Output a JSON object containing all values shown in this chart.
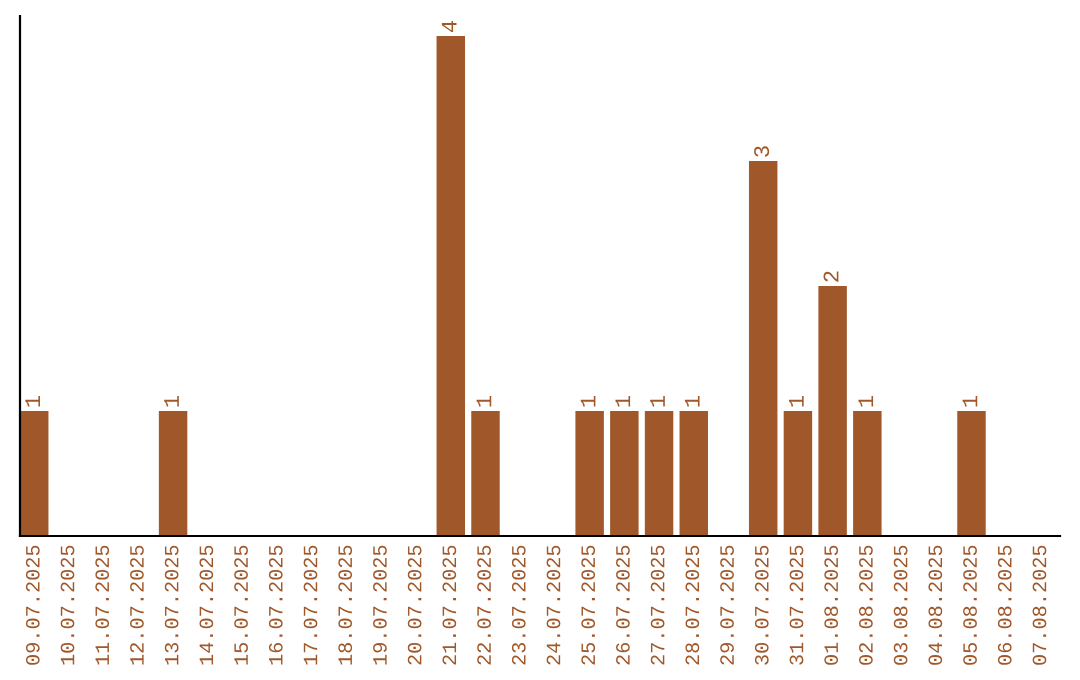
{
  "chart_data": {
    "type": "bar",
    "categories": [
      "09.07.2025",
      "10.07.2025",
      "11.07.2025",
      "12.07.2025",
      "13.07.2025",
      "14.07.2025",
      "15.07.2025",
      "16.07.2025",
      "17.07.2025",
      "18.07.2025",
      "19.07.2025",
      "20.07.2025",
      "21.07.2025",
      "22.07.2025",
      "23.07.2025",
      "24.07.2025",
      "25.07.2025",
      "26.07.2025",
      "27.07.2025",
      "28.07.2025",
      "29.07.2025",
      "30.07.2025",
      "31.07.2025",
      "01.08.2025",
      "02.08.2025",
      "03.08.2025",
      "04.08.2025",
      "05.08.2025",
      "06.08.2025",
      "07.08.2025"
    ],
    "values": [
      1,
      0,
      0,
      0,
      1,
      0,
      0,
      0,
      0,
      0,
      0,
      0,
      4,
      1,
      0,
      0,
      1,
      1,
      1,
      1,
      0,
      3,
      1,
      2,
      1,
      0,
      0,
      1,
      0,
      0
    ],
    "value_labels": [
      "1",
      null,
      null,
      null,
      "1",
      null,
      null,
      null,
      null,
      null,
      null,
      null,
      "4",
      "1",
      null,
      null,
      "1",
      "1",
      "1",
      "1",
      null,
      "3",
      "1",
      "2",
      "1",
      null,
      null,
      "1",
      null,
      null
    ],
    "color": "#a0582a",
    "tick_labels": "x",
    "grid": false
  }
}
